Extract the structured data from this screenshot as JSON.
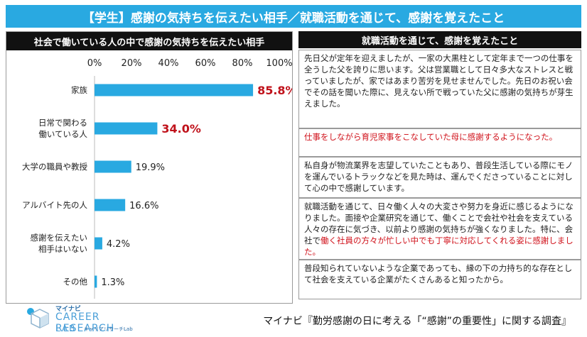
{
  "header": {
    "title": "【学生】感謝の気持ちを伝えたい相手／就職活動を通じて、感謝を覚えたこと"
  },
  "chart_data": {
    "type": "bar",
    "orientation": "horizontal",
    "title": "社会で働いている人の中で感謝の気持ちを伝えたい相手",
    "categories": [
      [
        "家族"
      ],
      [
        "日常で関わる",
        "働いている人"
      ],
      [
        "大学の職員や教授"
      ],
      [
        "アルバイト先の人"
      ],
      [
        "感謝を伝えたい",
        "相手はいない"
      ],
      [
        "その他"
      ]
    ],
    "values": [
      85.8,
      34.0,
      19.9,
      16.6,
      4.2,
      1.3
    ],
    "value_labels": [
      "85.8%",
      "34.0%",
      "19.9%",
      "16.6%",
      "4.2%",
      "1.3%"
    ],
    "highlight": [
      true,
      true,
      false,
      false,
      false,
      false
    ],
    "xlim": [
      0,
      100
    ],
    "ticks": [
      "0%",
      "20%",
      "40%",
      "60%",
      "80%",
      "100%"
    ],
    "bar_color": "#29a9e1",
    "highlight_label_color": "#c0121b",
    "grid": false
  },
  "comments": {
    "title": "就職活動を通じて、感謝を覚えたこと",
    "items": [
      {
        "parts": [
          {
            "text": "先日父が定年を迎えましたが、一家の大黒柱として定年まで一つの仕事を全うした父を誇りに思います。父は営業職として日々多大なストレスと戦っていましたが、家ではあまり苦労を見せませんでした。先日のお祝い会でその話を聞いた際に、見えない所で戦っていた父に感謝の気持ちが芽生えました。",
            "red": false
          }
        ]
      },
      {
        "parts": [
          {
            "text": "仕事をしながら育児家事をこなしていた母に感謝するようになった。",
            "red": true
          }
        ]
      },
      {
        "parts": [
          {
            "text": "私自身が物流業界を志望していたこともあり、普段生活している際にモノを運んでいるトラックなどを見た時は、運んでくださっていることに対して心の中で感謝しています。",
            "red": false
          }
        ]
      },
      {
        "parts": [
          {
            "text": "就職活動を通じて、日々働く人々の大変さや努力を身近に感じるようになりました。面接や企業研究を通じて、働くことで会社や社会を支えている人々の存在に気づき、以前より感謝の気持ちが強くなりました。特に、会社で",
            "red": false
          },
          {
            "text": "働く社員の方々が忙しい中でも丁寧に対応してくれる姿に感謝しました。",
            "red": true
          }
        ]
      },
      {
        "parts": [
          {
            "text": "普段知られていないような企業であっても、縁の下の力持ち的な存在として社会を支えている企業がたくさんあると知ったから。",
            "red": false
          }
        ]
      }
    ]
  },
  "footer": {
    "logo_brand": "マイナビ",
    "logo_name": "CAREER RESEARCH",
    "logo_lab": "LAB",
    "logo_sub": "キャリアリサーチLab",
    "source": "マイナビ『勤労感謝の日に考える「“感謝”の重要性」に関する調査』"
  },
  "colors": {
    "accent": "#29a9e1",
    "dark": "#111111",
    "red": "#d0121b"
  }
}
